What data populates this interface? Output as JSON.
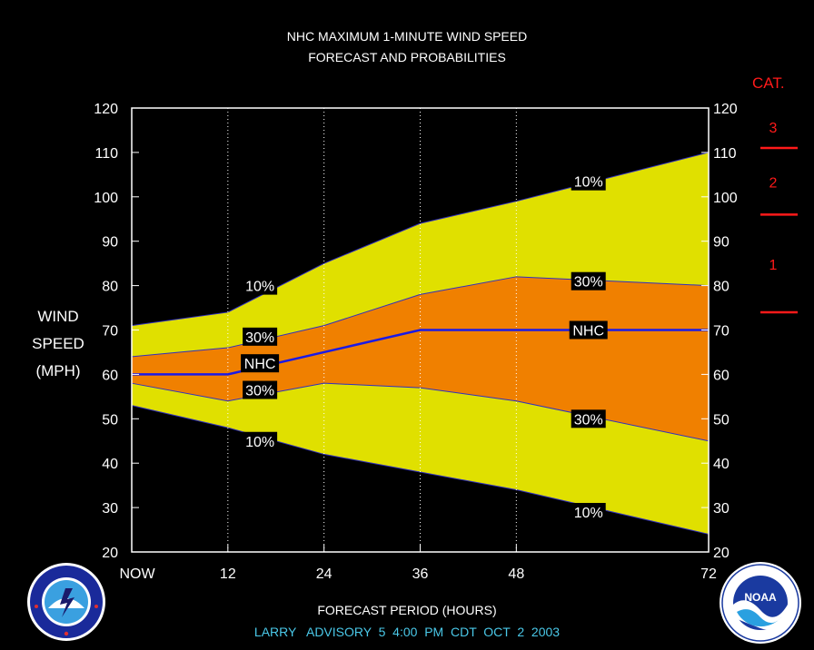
{
  "header": {
    "title_line1": "NHC MAXIMUM 1-MINUTE WIND SPEED",
    "title_line2": "FORECAST AND PROBABILITIES"
  },
  "axes": {
    "ylabel_lines": [
      "WIND",
      "SPEED",
      "(MPH)"
    ],
    "xlabel": "FORECAST PERIOD (HOURS)"
  },
  "footer": {
    "advisory": "LARRY   ADVISORY  5  4:00  PM  CDT  OCT  2  2003"
  },
  "category_scale": {
    "title": "CAT.",
    "color": "#ff1a1a",
    "categories": [
      {
        "label": "1",
        "lower_mph": 74
      },
      {
        "label": "2",
        "lower_mph": 96
      },
      {
        "label": "3",
        "lower_mph": 111
      }
    ]
  },
  "logos": {
    "left": "nws-logo",
    "right": "noaa-logo",
    "noaa_text": "NOAA"
  },
  "chart_data": {
    "type": "area",
    "title": "NHC MAXIMUM 1-MINUTE WIND SPEED FORECAST AND PROBABILITIES",
    "xlabel": "FORECAST PERIOD (HOURS)",
    "ylabel": "WIND SPEED (MPH)",
    "xlim": [
      0,
      72
    ],
    "ylim": [
      20,
      120
    ],
    "x_ticks": [
      {
        "x": 0,
        "label": "NOW"
      },
      {
        "x": 12,
        "label": "12"
      },
      {
        "x": 24,
        "label": "24"
      },
      {
        "x": 36,
        "label": "36"
      },
      {
        "x": 48,
        "label": "48"
      },
      {
        "x": 72,
        "label": "72"
      }
    ],
    "y_ticks": [
      20,
      30,
      40,
      50,
      60,
      70,
      80,
      90,
      100,
      110,
      120
    ],
    "vertical_gridlines_at": [
      12,
      24,
      36,
      48
    ],
    "x": [
      0,
      12,
      24,
      36,
      48,
      72
    ],
    "colors": {
      "outer_band": "#e0e000",
      "inner_band": "#f08000",
      "forecast_line": "#1a1ae6",
      "background": "#000000",
      "plot_border": "#ffffff"
    },
    "series": [
      {
        "name": "10%",
        "band": "upper",
        "values": [
          71,
          74,
          85,
          94,
          99,
          110
        ]
      },
      {
        "name": "30%",
        "band": "upper",
        "values": [
          64,
          66,
          71,
          78,
          82,
          80
        ]
      },
      {
        "name": "NHC",
        "values": [
          60,
          60,
          65,
          70,
          70,
          70
        ]
      },
      {
        "name": "30%",
        "band": "lower",
        "values": [
          58,
          54,
          58,
          57,
          54,
          45
        ]
      },
      {
        "name": "10%",
        "band": "lower",
        "values": [
          53,
          48,
          42,
          38,
          34,
          24
        ]
      }
    ],
    "labels": [
      {
        "text": "10%",
        "x": 16,
        "y": 80
      },
      {
        "text": "30%",
        "x": 16,
        "y": 68.5
      },
      {
        "text": "NHC",
        "x": 16,
        "y": 62.5
      },
      {
        "text": "30%",
        "x": 16,
        "y": 56.5
      },
      {
        "text": "10%",
        "x": 16,
        "y": 45
      },
      {
        "text": "10%",
        "x": 57,
        "y": 103.5
      },
      {
        "text": "30%",
        "x": 57,
        "y": 81
      },
      {
        "text": "NHC",
        "x": 57,
        "y": 70
      },
      {
        "text": "30%",
        "x": 57,
        "y": 50
      },
      {
        "text": "10%",
        "x": 57,
        "y": 29
      }
    ]
  }
}
